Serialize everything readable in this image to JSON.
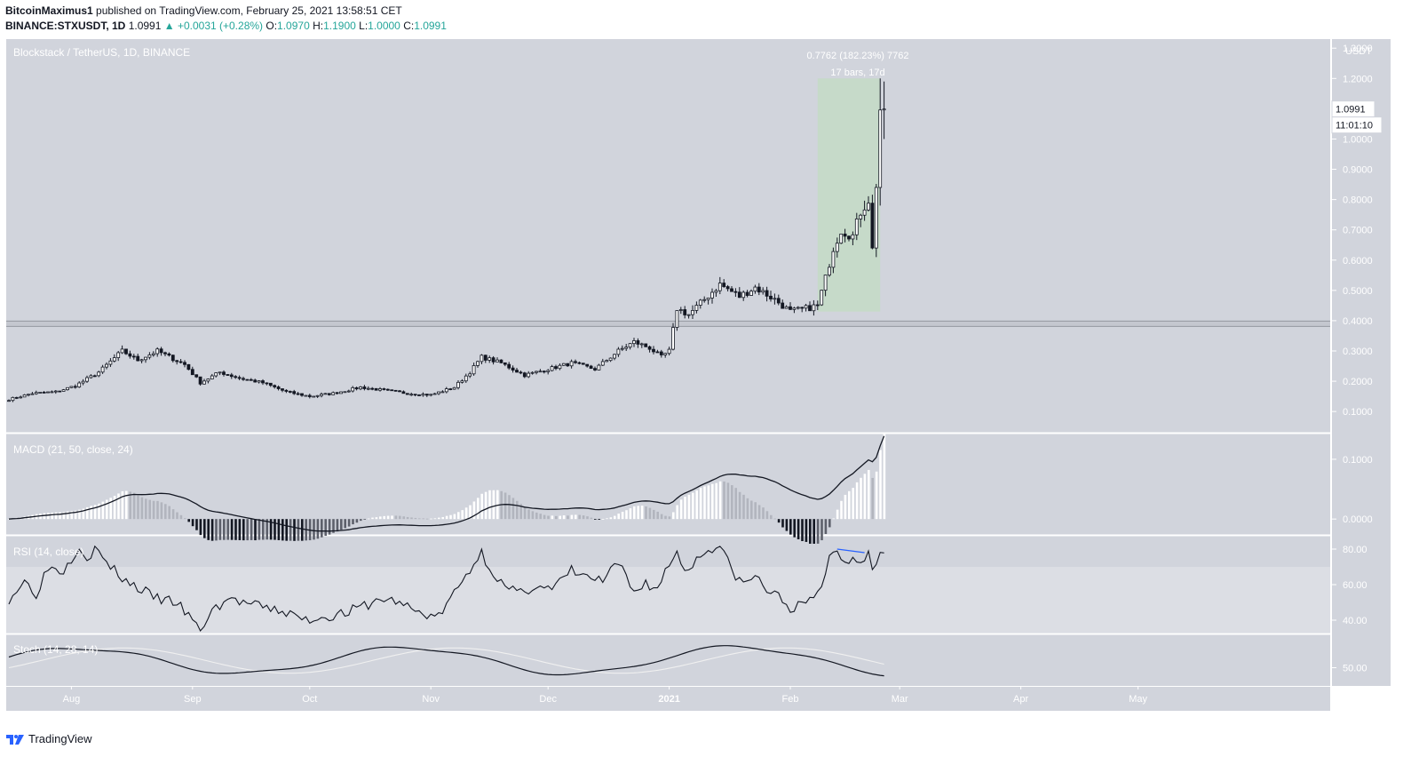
{
  "header": {
    "author": "BitcoinMaximus1",
    "published_text": "published on TradingView.com, February 25, 2021 13:58:51 CET",
    "symbol": "BINANCE:STXUSDT, 1D",
    "last": "1.0991",
    "change": "▲ +0.0031 (+0.28%)",
    "open_label": "O:",
    "open": "1.0970",
    "high_label": "H:",
    "high": "1.1900",
    "low_label": "L:",
    "low": "1.0000",
    "close_label": "C:",
    "close": "1.0991"
  },
  "footer": {
    "brand": "TradingView"
  },
  "colors": {
    "panel_bg": "#d1d4dc",
    "rsi_band": "#dcdee4",
    "measure_fill": "#c5dac7",
    "candle": "#131722",
    "axis_text": "#ffffff",
    "divergence": "#2962ff",
    "stoch_signal": "#f0f0f0"
  },
  "chart_data": [
    {
      "type": "candlestick",
      "title": "Blockstack / TetherUS, 1D, BINANCE",
      "currency": "USDT",
      "ylim": [
        0.03,
        1.33
      ],
      "yticks": [
        0.1,
        0.2,
        0.3,
        0.4,
        0.5,
        0.6,
        0.7,
        0.8,
        0.9,
        1.0,
        1.1,
        1.2,
        1.3
      ],
      "ytick_labels": [
        "0.1000",
        "0.2000",
        "0.3000",
        "0.4000",
        "0.5000",
        "0.6000",
        "0.7000",
        "0.8000",
        "0.9000",
        "1.0000",
        "1.1000",
        "1.2000",
        "1.3000"
      ],
      "x_months": [
        "Aug",
        "Sep",
        "Oct",
        "Nov",
        "Dec",
        "2021",
        "Feb",
        "Mar",
        "Apr",
        "May"
      ],
      "start_date": "2020-07-16",
      "support_level": 0.39,
      "price_label": "1.0991",
      "countdown_label": "11:01:10",
      "measure": {
        "line1": "0.7762 (182.23%) 7762",
        "line2": "17 bars, 17d",
        "start_day": 207,
        "end_day": 223,
        "low": 0.43,
        "high": 1.2
      },
      "close_anchors": [
        [
          0,
          0.14
        ],
        [
          6,
          0.16
        ],
        [
          12,
          0.165
        ],
        [
          17,
          0.185
        ],
        [
          23,
          0.23
        ],
        [
          29,
          0.3
        ],
        [
          33,
          0.27
        ],
        [
          38,
          0.3
        ],
        [
          45,
          0.255
        ],
        [
          49,
          0.195
        ],
        [
          54,
          0.23
        ],
        [
          59,
          0.21
        ],
        [
          65,
          0.195
        ],
        [
          71,
          0.165
        ],
        [
          77,
          0.15
        ],
        [
          83,
          0.16
        ],
        [
          90,
          0.18
        ],
        [
          96,
          0.17
        ],
        [
          102,
          0.16
        ],
        [
          108,
          0.155
        ],
        [
          114,
          0.18
        ],
        [
          118,
          0.23
        ],
        [
          121,
          0.28
        ],
        [
          126,
          0.26
        ],
        [
          132,
          0.22
        ],
        [
          138,
          0.24
        ],
        [
          144,
          0.26
        ],
        [
          150,
          0.24
        ],
        [
          156,
          0.3
        ],
        [
          160,
          0.33
        ],
        [
          164,
          0.31
        ],
        [
          167,
          0.28
        ],
        [
          169,
          0.3
        ],
        [
          171,
          0.44
        ],
        [
          174,
          0.42
        ],
        [
          178,
          0.47
        ],
        [
          182,
          0.52
        ],
        [
          187,
          0.48
        ],
        [
          191,
          0.51
        ],
        [
          196,
          0.47
        ],
        [
          200,
          0.43
        ],
        [
          204,
          0.44
        ],
        [
          207,
          0.45
        ],
        [
          209,
          0.54
        ],
        [
          211,
          0.64
        ],
        [
          213,
          0.7
        ],
        [
          216,
          0.68
        ],
        [
          218,
          0.76
        ],
        [
          220,
          0.8
        ],
        [
          221,
          0.64
        ],
        [
          222,
          0.84
        ],
        [
          223,
          1.096
        ],
        [
          224,
          1.099
        ]
      ]
    },
    {
      "type": "line",
      "title": "MACD (21, 50, close, 24)",
      "yticks": [
        0.0,
        0.1
      ],
      "ytick_labels": [
        "0.0000",
        "0.1000"
      ],
      "ylim": [
        -0.025,
        0.14
      ]
    },
    {
      "type": "line",
      "title": "RSI (14, close)",
      "yticks": [
        40,
        60,
        80
      ],
      "ytick_labels": [
        "40.00",
        "60.00",
        "80.00"
      ],
      "ylim": [
        33,
        87
      ],
      "band": [
        30,
        70
      ],
      "rsi_anchors": [
        [
          0,
          52
        ],
        [
          4,
          62
        ],
        [
          7,
          55
        ],
        [
          10,
          70
        ],
        [
          14,
          68
        ],
        [
          18,
          82
        ],
        [
          20,
          75
        ],
        [
          22,
          80
        ],
        [
          26,
          70
        ],
        [
          30,
          62
        ],
        [
          34,
          57
        ],
        [
          38,
          52
        ],
        [
          43,
          50
        ],
        [
          49,
          34
        ],
        [
          52,
          45
        ],
        [
          56,
          52
        ],
        [
          60,
          50
        ],
        [
          65,
          47
        ],
        [
          70,
          45
        ],
        [
          76,
          40
        ],
        [
          81,
          42
        ],
        [
          86,
          44
        ],
        [
          91,
          48
        ],
        [
          96,
          52
        ],
        [
          100,
          50
        ],
        [
          105,
          44
        ],
        [
          110,
          42
        ],
        [
          114,
          55
        ],
        [
          117,
          65
        ],
        [
          119,
          72
        ],
        [
          121,
          78
        ],
        [
          123,
          70
        ],
        [
          127,
          58
        ],
        [
          131,
          55
        ],
        [
          135,
          60
        ],
        [
          139,
          57
        ],
        [
          144,
          68
        ],
        [
          148,
          64
        ],
        [
          152,
          62
        ],
        [
          156,
          72
        ],
        [
          160,
          55
        ],
        [
          163,
          62
        ],
        [
          165,
          57
        ],
        [
          167,
          62
        ],
        [
          169,
          72
        ],
        [
          171,
          78
        ],
        [
          173,
          68
        ],
        [
          176,
          74
        ],
        [
          179,
          80
        ],
        [
          182,
          82
        ],
        [
          185,
          68
        ],
        [
          188,
          60
        ],
        [
          191,
          65
        ],
        [
          194,
          57
        ],
        [
          197,
          53
        ],
        [
          200,
          47
        ],
        [
          203,
          48
        ],
        [
          206,
          52
        ],
        [
          208,
          60
        ],
        [
          210,
          75
        ],
        [
          212,
          80
        ],
        [
          214,
          72
        ],
        [
          216,
          76
        ],
        [
          218,
          74
        ],
        [
          220,
          78
        ],
        [
          221,
          68
        ],
        [
          222,
          72
        ],
        [
          223,
          80
        ],
        [
          224,
          80
        ]
      ],
      "divergence": [
        [
          212,
          80
        ],
        [
          219,
          78
        ]
      ]
    },
    {
      "type": "line",
      "title": "Stoch (14, 28, 14)",
      "yticks": [
        50
      ],
      "ytick_labels": [
        "50.00"
      ],
      "ylim": [
        0,
        100
      ]
    }
  ]
}
